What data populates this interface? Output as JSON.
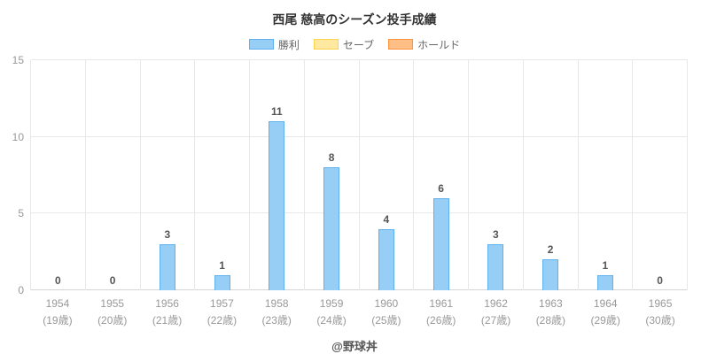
{
  "chart": {
    "title": "西尾 慈高のシーズン投手成績",
    "watermark": "@野球丼"
  },
  "chart_data": {
    "type": "bar",
    "title": "西尾 慈高のシーズン投手成績",
    "categories": [
      "1954",
      "1955",
      "1956",
      "1957",
      "1958",
      "1959",
      "1960",
      "1961",
      "1962",
      "1963",
      "1964",
      "1965"
    ],
    "category_sublabels": [
      "(19歳)",
      "(20歳)",
      "(21歳)",
      "(22歳)",
      "(23歳)",
      "(24歳)",
      "(25歳)",
      "(26歳)",
      "(27歳)",
      "(28歳)",
      "(29歳)",
      "(30歳)"
    ],
    "series": [
      {
        "name": "勝利",
        "values": [
          0,
          0,
          3,
          1,
          11,
          8,
          4,
          6,
          3,
          2,
          1,
          0
        ],
        "fill": "#97CEF6",
        "border": "#5FB0EF"
      }
    ],
    "legend": [
      {
        "label": "勝利",
        "fill": "#97CEF6",
        "border": "#5FB0EF"
      },
      {
        "label": "セーブ",
        "fill": "#FFE9A0",
        "border": "#FFD34D"
      },
      {
        "label": "ホールド",
        "fill": "#FFBE85",
        "border": "#FF9440"
      }
    ],
    "ylim": [
      0,
      15
    ],
    "yticks": [
      0,
      5,
      10,
      15
    ],
    "legend_position": "top",
    "grid": true,
    "xlabel": "",
    "ylabel": ""
  }
}
